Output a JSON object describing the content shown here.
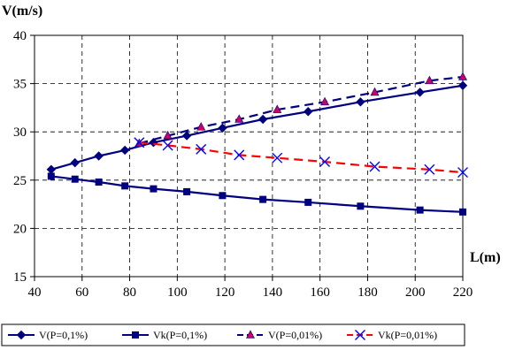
{
  "chart_data": {
    "type": "line",
    "ylabel": "V(m/s)",
    "xlabel": "L(m)",
    "xlim": [
      40,
      220
    ],
    "ylim": [
      15,
      40
    ],
    "x_ticks": [
      40,
      60,
      80,
      100,
      120,
      140,
      160,
      180,
      200,
      220
    ],
    "y_ticks": [
      15,
      20,
      25,
      30,
      35,
      40
    ],
    "x_tick_labels": [
      "40",
      "60",
      "80",
      "100",
      "120",
      "140",
      "160",
      "180",
      "200",
      "220"
    ],
    "y_tick_labels": [
      "15",
      "20",
      "25",
      "30",
      "35",
      "40"
    ],
    "grid": true,
    "legend_placement": "bottom",
    "series": [
      {
        "name": "V(P=0,1%)",
        "color": "#000080",
        "line_style": "solid",
        "marker": "diamond",
        "x": [
          47,
          57,
          67,
          78,
          90,
          104,
          119,
          136,
          155,
          177,
          202,
          220
        ],
        "y": [
          26.1,
          26.8,
          27.5,
          28.1,
          28.9,
          29.6,
          30.4,
          31.3,
          32.1,
          33.1,
          34.1,
          34.8
        ]
      },
      {
        "name": "Vk(P=0,1%)",
        "color": "#000080",
        "line_style": "solid",
        "marker": "square",
        "x": [
          47,
          57,
          67,
          78,
          90,
          104,
          119,
          136,
          155,
          177,
          202,
          220
        ],
        "y": [
          25.4,
          25.1,
          24.8,
          24.4,
          24.1,
          23.8,
          23.4,
          23.0,
          22.7,
          22.3,
          21.9,
          21.7
        ]
      },
      {
        "name": "V(P=0,01%)",
        "color": "#000080",
        "line_style": "dashed",
        "marker": "triangle",
        "marker_color": "#cc0066",
        "x": [
          84,
          96,
          110,
          126,
          142,
          162,
          183,
          206,
          220
        ],
        "y": [
          28.8,
          29.6,
          30.5,
          31.3,
          32.3,
          33.1,
          34.1,
          35.3,
          35.7
        ]
      },
      {
        "name": "Vk(P=0,01%)",
        "color": "#ff0000",
        "line_style": "dashed",
        "marker": "x",
        "marker_color": "#0000ff",
        "x": [
          84,
          96,
          110,
          126,
          142,
          162,
          183,
          206,
          220
        ],
        "y": [
          28.9,
          28.6,
          28.2,
          27.6,
          27.3,
          26.9,
          26.4,
          26.1,
          25.8
        ]
      }
    ]
  }
}
